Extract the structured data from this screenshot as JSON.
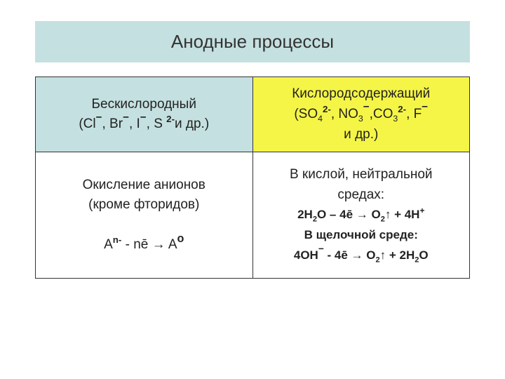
{
  "title": "Анодные процессы",
  "table": {
    "header_left": {
      "line1": "Бескислородный",
      "line2_prefix": "(Cl",
      "line2_sep1": ", Br",
      "line2_sep2": ", I",
      "line2_sep3": ", S ",
      "line2_suffix": "и др.)",
      "bg_color": "#c5e0e0"
    },
    "header_right": {
      "line1": "Кислородсодержащий",
      "line2_part1": "(SO",
      "line2_part2": ", NO",
      "line2_part3": ",CO",
      "line2_part4": ", F",
      "line3": "и др.)",
      "bg_color": "#f5f547"
    },
    "body_left": {
      "line1": "Окисление анионов",
      "line2": "(кроме фторидов)",
      "eq_left": "A",
      "eq_mid": " - nē → A",
      "eq_sup1": "n-",
      "eq_sup2": "o"
    },
    "body_right": {
      "line1": "В кислой, нейтральной",
      "line2": "средах:",
      "eq1_part1": "2H",
      "eq1_part2": "O – 4ē → O",
      "eq1_part3": "↑ + 4H",
      "line3": "В щелочной среде:",
      "eq2_part1": "4OH",
      "eq2_part2": " - 4ē → O",
      "eq2_part3": "↑ + 2H",
      "eq2_part4": "O"
    }
  },
  "colors": {
    "title_bg": "#c5e0e0",
    "border": "#333333",
    "text": "#222222",
    "page_bg": "#ffffff"
  }
}
